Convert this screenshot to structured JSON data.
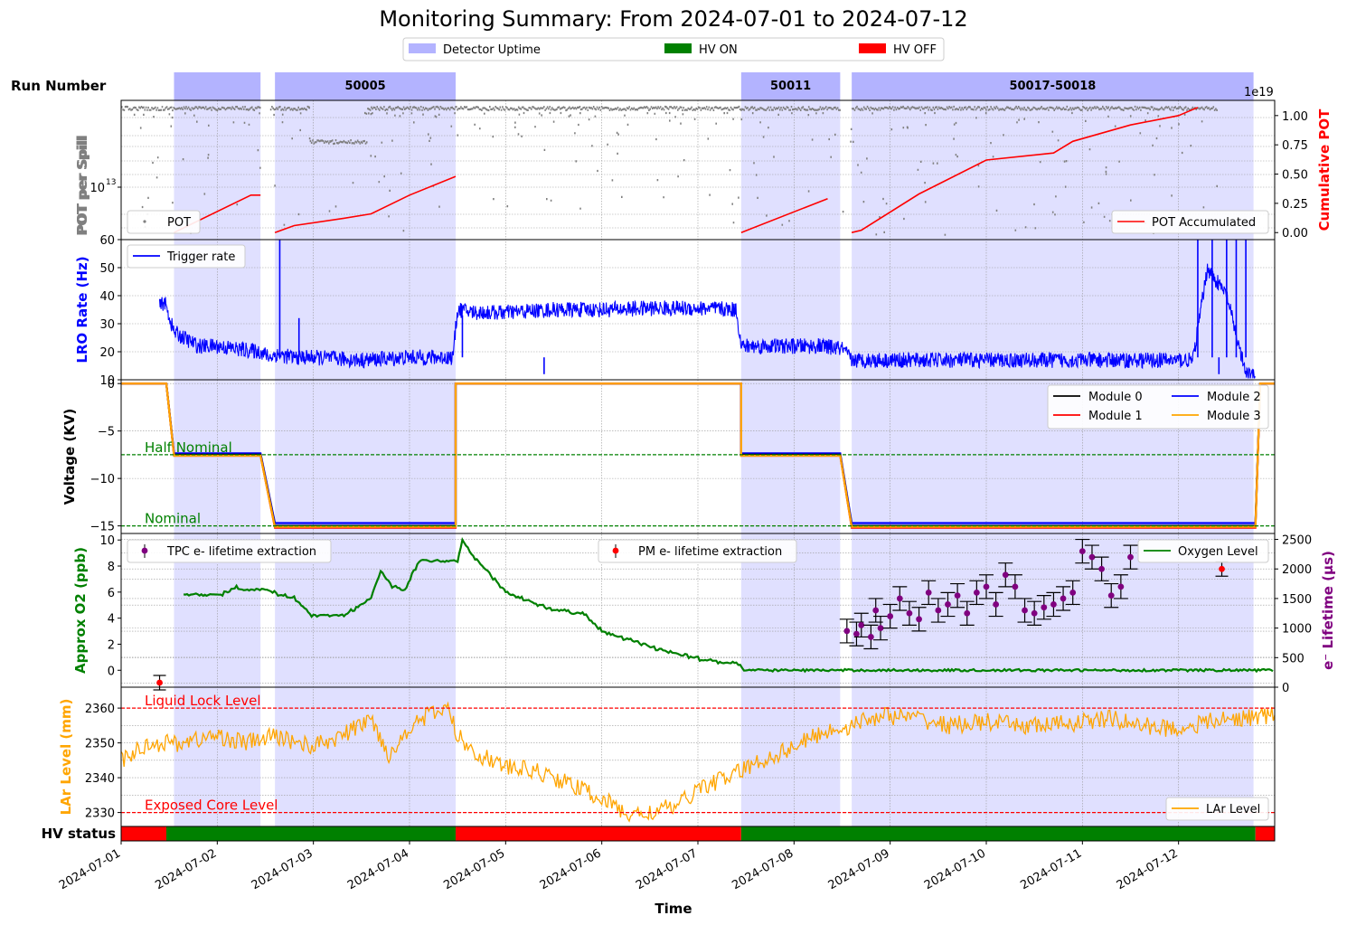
{
  "title": "Monitoring Summary: From 2024-07-01 to 2024-07-12",
  "colors": {
    "uptime": "#b3b3ff",
    "uptime_panel": "#e0e0ff",
    "hv_on": "#008000",
    "hv_off": "#ff0000",
    "pot": "#808080",
    "pot_cum": "#ff0000",
    "trigger": "#0000ff",
    "oxygen": "#008000",
    "tpc": "#800080",
    "pm": "#ff0000",
    "lar": "#ffa500",
    "module0": "#000000",
    "module1": "#ff0000",
    "module2": "#0000ff",
    "module3": "#ffa500"
  },
  "top_legend": [
    {
      "label": "Detector Uptime",
      "color": "#b3b3ff"
    },
    {
      "label": "HV ON",
      "color": "#008000"
    },
    {
      "label": "HV OFF",
      "color": "#ff0000"
    }
  ],
  "run_row": {
    "label": "Run Number",
    "runs": [
      {
        "label": "",
        "start": 1.55,
        "end": 2.45
      },
      {
        "label": "50005",
        "start": 2.6,
        "end": 4.48
      },
      {
        "label": "50011",
        "start": 7.45,
        "end": 8.48
      },
      {
        "label": "50017-50018",
        "start": 8.6,
        "end": 12.78
      }
    ]
  },
  "x_axis": {
    "label": "Time",
    "ticks": [
      "2024-07-01",
      "2024-07-02",
      "2024-07-03",
      "2024-07-04",
      "2024-07-05",
      "2024-07-06",
      "2024-07-07",
      "2024-07-08",
      "2024-07-09",
      "2024-07-10",
      "2024-07-11",
      "2024-07-12"
    ],
    "range": [
      "2024-07-01 00:00",
      "2024-07-13 00:00"
    ]
  },
  "hv_status": {
    "label": "HV status",
    "segments": [
      {
        "state": "OFF",
        "start": 1.0,
        "end": 1.47
      },
      {
        "state": "ON",
        "start": 1.47,
        "end": 4.48
      },
      {
        "state": "OFF",
        "start": 4.48,
        "end": 7.45
      },
      {
        "state": "ON",
        "start": 7.45,
        "end": 12.8
      },
      {
        "state": "OFF",
        "start": 12.8,
        "end": 13.0
      }
    ]
  },
  "panels": {
    "pot": {
      "ylabel": "POT per Spill",
      "y2label": "Cumulative POT",
      "ytick": "10",
      "ytick_exp": "13",
      "y2ticks": [
        "0.00",
        "0.25",
        "0.50",
        "0.75",
        "1.00"
      ],
      "y2scale": "1e19",
      "legend_left": "POT",
      "legend_right": "POT Accumulated"
    },
    "trigger": {
      "ylabel": "LRO Rate (Hz)",
      "yticks": [
        "10",
        "20",
        "30",
        "40",
        "50",
        "60"
      ],
      "ylim": [
        10,
        60
      ],
      "legend": "Trigger rate"
    },
    "voltage": {
      "ylabel": "Voltage (KV)",
      "yticks": [
        "0",
        "−5",
        "−10",
        "−15"
      ],
      "ylim": [
        -15.8,
        0.4
      ],
      "half_label": "Half Nominal",
      "nominal_label": "Nominal",
      "legend": [
        "Module 0",
        "Module 1",
        "Module 2",
        "Module 3"
      ]
    },
    "oxygen": {
      "ylabel": "Approx O2 (ppb)",
      "y2label": "e⁻ Lifetime (μs)",
      "yticks": [
        "0",
        "2",
        "4",
        "6",
        "8",
        "10"
      ],
      "y2ticks": [
        "0",
        "500",
        "1000",
        "1500",
        "2000",
        "2500"
      ],
      "legend_tpc": "TPC e- lifetime extraction",
      "legend_pm": "PM e- lifetime extraction",
      "legend_o2": "Oxygen Level"
    },
    "lar": {
      "ylabel": "LAr Level (mm)",
      "yticks": [
        "2330",
        "2340",
        "2350",
        "2360"
      ],
      "ylim": [
        2326,
        2366
      ],
      "liquid_lock_label": "Liquid Lock Level",
      "exposed_core_label": "Exposed Core Level",
      "legend": "LAr Level"
    }
  },
  "chart_data": [
    {
      "type": "scatter",
      "title": "POT per Spill",
      "series": [
        {
          "name": "POT",
          "x": [
            1.1,
            1.5,
            2.0,
            2.45,
            2.6,
            3.0,
            3.5,
            4.0,
            4.45,
            5.0,
            6.0,
            7.0,
            7.45,
            8.0,
            8.5,
            8.6,
            9.0,
            10.0,
            11.0,
            12.0,
            12.2
          ],
          "approx_level": "mostly near top of panel with scattered low outliers"
        }
      ]
    },
    {
      "type": "line",
      "title": "Cumulative POT",
      "y_units": "1e19",
      "series": [
        {
          "name": "POT Accumulated",
          "segments": [
            {
              "x": [
                1.55,
                2.35,
                2.45
              ],
              "y": [
                0.0,
                0.32,
                0.32
              ]
            },
            {
              "x": [
                2.6,
                2.8,
                3.3,
                3.6,
                4.0,
                4.48
              ],
              "y": [
                0.0,
                0.06,
                0.12,
                0.16,
                0.32,
                0.48
              ]
            },
            {
              "x": [
                7.45,
                8.35
              ],
              "y": [
                0.0,
                0.29
              ]
            },
            {
              "x": [
                8.6,
                8.7,
                9.3,
                10.0,
                10.7,
                10.9,
                11.5,
                12.0,
                12.2
              ],
              "y": [
                0.0,
                0.02,
                0.33,
                0.62,
                0.68,
                0.78,
                0.92,
                1.0,
                1.07
              ]
            }
          ]
        }
      ]
    },
    {
      "type": "line",
      "title": "Trigger rate",
      "ylim": [
        10,
        60
      ],
      "series": [
        {
          "name": "Trigger rate",
          "x": [
            1.4,
            1.45,
            1.55,
            1.8,
            2.0,
            2.2,
            2.45,
            2.55,
            2.6,
            2.8,
            3.0,
            3.5,
            4.0,
            4.45,
            4.5,
            4.7,
            5.0,
            5.5,
            6.0,
            6.5,
            7.0,
            7.4,
            7.45,
            7.5,
            7.8,
            8.0,
            8.3,
            8.5,
            8.6,
            8.7,
            9.0,
            9.5,
            10.0,
            10.5,
            11.0,
            11.5,
            12.0,
            12.15,
            12.3,
            12.5,
            12.7,
            12.8
          ],
          "y": [
            36,
            38,
            27,
            22,
            22,
            21,
            20,
            18,
            19,
            18,
            18,
            17,
            18,
            18,
            35,
            34,
            34,
            35,
            35,
            35.5,
            35.5,
            35,
            22,
            22,
            22,
            22,
            22,
            21,
            17,
            17,
            17,
            17,
            17,
            17,
            17,
            17,
            17,
            17,
            50,
            40,
            12,
            11
          ]
        }
      ]
    },
    {
      "type": "line",
      "title": "Voltage (KV)",
      "ylim": [
        -15.8,
        0.4
      ],
      "series": [
        {
          "name": "Module 0",
          "x": [
            1.0,
            1.47,
            1.55,
            2.45,
            2.6,
            4.48,
            4.48,
            7.45,
            7.45,
            8.48,
            8.6,
            12.8,
            12.85,
            13.0
          ],
          "y": [
            0,
            0,
            -7.5,
            -7.5,
            -15,
            -15,
            0,
            0,
            -7.5,
            -7.5,
            -15,
            -15,
            0,
            0
          ]
        },
        {
          "name": "Module 1",
          "x": [
            1.0,
            1.47,
            1.55,
            2.45,
            2.6,
            4.48,
            4.48,
            7.45,
            7.45,
            8.48,
            8.6,
            12.8,
            12.85,
            13.0
          ],
          "y": [
            0,
            0,
            -7.6,
            -7.6,
            -15.2,
            -15.2,
            0,
            0,
            -7.6,
            -7.6,
            -15.2,
            -15.2,
            0,
            0
          ]
        },
        {
          "name": "Module 2",
          "x": [
            1.0,
            1.47,
            1.55,
            2.45,
            2.6,
            4.48,
            4.48,
            7.45,
            7.45,
            8.48,
            8.6,
            12.8,
            12.85,
            13.0
          ],
          "y": [
            0,
            0,
            -7.35,
            -7.35,
            -14.7,
            -14.7,
            0,
            0,
            -7.35,
            -7.35,
            -14.7,
            -14.7,
            0,
            0
          ]
        },
        {
          "name": "Module 3",
          "x": [
            1.0,
            1.47,
            1.55,
            2.45,
            2.6,
            4.48,
            4.48,
            7.45,
            7.45,
            8.48,
            8.6,
            12.8,
            12.85,
            13.0
          ],
          "y": [
            0,
            0,
            -7.6,
            -7.6,
            -15.1,
            -15.1,
            0,
            0,
            -7.6,
            -7.6,
            -15.1,
            -15.1,
            0,
            0
          ]
        }
      ],
      "reference_lines": [
        {
          "label": "Half Nominal",
          "y": -7.5
        },
        {
          "label": "Nominal",
          "y": -15
        }
      ]
    },
    {
      "type": "line",
      "title": "Approx O2 (ppb)",
      "series": [
        {
          "name": "Oxygen Level",
          "x": [
            1.65,
            2.0,
            2.2,
            2.5,
            2.8,
            3.0,
            3.3,
            3.5,
            3.6,
            3.7,
            3.8,
            3.95,
            4.1,
            4.5,
            4.55,
            4.7,
            5.0,
            5.5,
            5.8,
            6.0,
            6.3,
            6.6,
            7.0,
            7.4,
            7.5,
            8.0,
            9.0,
            10.0,
            11.0,
            12.0,
            13.0
          ],
          "y": [
            5.7,
            5.7,
            6.3,
            6.2,
            5.5,
            4.1,
            4.1,
            5.0,
            5.5,
            7.5,
            6.5,
            6.2,
            8.4,
            8.4,
            10.0,
            8.5,
            6.0,
            4.6,
            4.4,
            3.0,
            2.3,
            1.6,
            0.9,
            0.5,
            0.0,
            0.0,
            0.0,
            0.0,
            0.0,
            0.0,
            0.0
          ]
        }
      ]
    },
    {
      "type": "scatter",
      "title": "e- Lifetime (us)",
      "series": [
        {
          "name": "TPC e- lifetime extraction",
          "x": [
            8.55,
            8.65,
            8.7,
            8.8,
            8.85,
            8.9,
            9.0,
            9.1,
            9.2,
            9.3,
            9.4,
            9.5,
            9.6,
            9.7,
            9.8,
            9.9,
            10.0,
            10.1,
            10.2,
            10.3,
            10.4,
            10.5,
            10.6,
            10.7,
            10.8,
            10.9,
            11.0,
            11.1,
            11.2,
            11.3,
            11.4,
            11.5
          ],
          "y": [
            950,
            900,
            1050,
            850,
            1300,
            1000,
            1200,
            1500,
            1250,
            1150,
            1600,
            1300,
            1400,
            1550,
            1250,
            1600,
            1700,
            1400,
            1900,
            1700,
            1300,
            1250,
            1350,
            1400,
            1500,
            1600,
            2300,
            2200,
            2000,
            1550,
            1700,
            2200
          ],
          "error": 200
        },
        {
          "name": "PM e- lifetime extraction",
          "x": [
            1.4,
            12.45
          ],
          "y": [
            0,
            2000
          ],
          "error": 100
        }
      ],
      "y2lim": [
        0,
        2600
      ]
    },
    {
      "type": "line",
      "title": "LAr Level (mm)",
      "ylim": [
        2326,
        2366
      ],
      "series": [
        {
          "name": "LAr Level",
          "x": [
            1.0,
            1.3,
            1.6,
            2.0,
            2.3,
            2.6,
            3.0,
            3.3,
            3.6,
            3.8,
            4.0,
            4.2,
            4.4,
            4.5,
            4.7,
            5.0,
            5.3,
            5.6,
            6.0,
            6.3,
            6.5,
            6.8,
            7.0,
            7.3,
            7.6,
            8.0,
            8.3,
            8.6,
            8.9,
            9.3,
            9.6,
            10.0,
            10.3,
            10.6,
            11.0,
            11.3,
            11.6,
            12.0,
            12.3,
            12.6,
            13.0
          ],
          "y": [
            2345,
            2350,
            2350,
            2352,
            2350,
            2352,
            2349,
            2352,
            2357,
            2346,
            2355,
            2358,
            2360,
            2352,
            2347,
            2343,
            2342,
            2339,
            2334,
            2329,
            2330,
            2332,
            2337,
            2340,
            2344,
            2349,
            2353,
            2355,
            2358,
            2357,
            2355,
            2356,
            2355,
            2355,
            2356,
            2357,
            2355,
            2354,
            2356,
            2357,
            2358
          ]
        }
      ],
      "reference_lines": [
        {
          "label": "Liquid Lock Level",
          "y": 2360
        },
        {
          "label": "Exposed Core Level",
          "y": 2330
        }
      ]
    }
  ]
}
